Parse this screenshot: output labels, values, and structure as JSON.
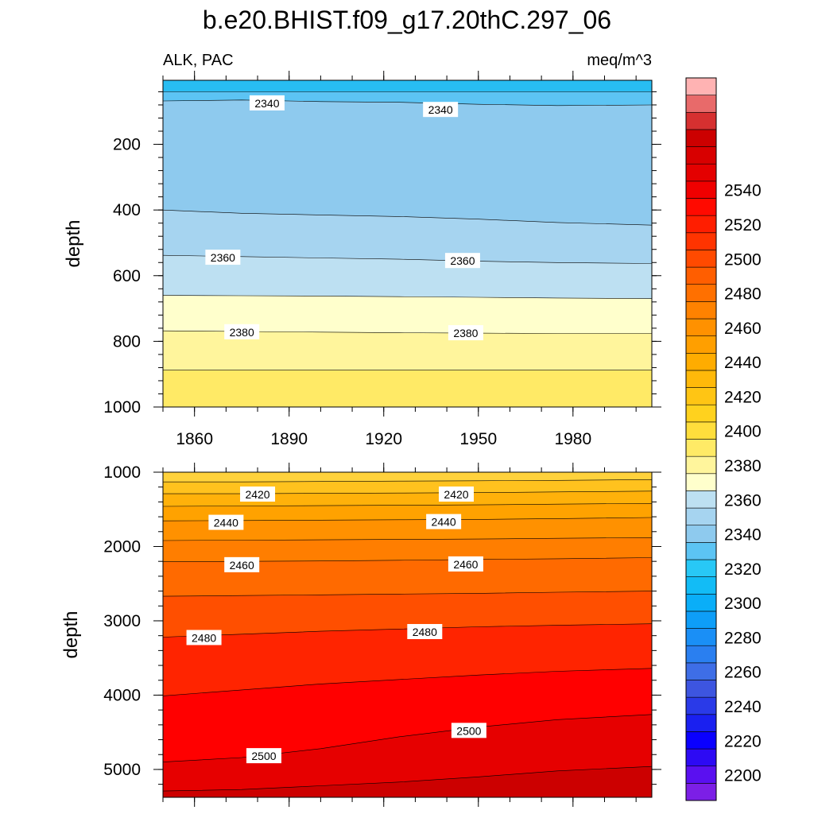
{
  "title": "b.e20.BHIST.f09_g17.20thC.297_06",
  "left_string": "ALK, PAC",
  "right_string": "meq/m^3",
  "colors": {
    "contour_line": "#000000",
    "background": "#ffffff"
  },
  "chart_data": [
    {
      "type": "heatmap",
      "panel": "upper",
      "xlabel": "",
      "ylabel": "depth",
      "xlim": [
        1850,
        2005
      ],
      "ylim": [
        5,
        1000
      ],
      "y_reversed": true,
      "x_ticks": [
        "1860",
        "1890",
        "1920",
        "1950",
        "1980"
      ],
      "y_ticks": [
        "200",
        "400",
        "600",
        "800",
        "1000"
      ],
      "fill_bands": [
        {
          "color": "#28bdf2",
          "boundary": [
            40,
            40,
            40,
            40,
            40,
            40,
            40
          ]
        },
        {
          "color": "#5cc4f4",
          "boundary": [
            68,
            65,
            70,
            72,
            78,
            82,
            80
          ]
        },
        {
          "color": "#8ecaee",
          "boundary": [
            400,
            410,
            415,
            420,
            428,
            438,
            446
          ]
        },
        {
          "color": "#a6d4f0",
          "boundary": [
            538,
            542,
            546,
            550,
            556,
            560,
            563
          ]
        },
        {
          "color": "#bde0f2",
          "boundary": [
            660,
            661,
            662,
            664,
            666,
            668,
            670
          ]
        },
        {
          "color": "#ffffcc",
          "boundary": [
            768,
            770,
            772,
            774,
            775,
            776,
            776
          ]
        },
        {
          "color": "#fff59c",
          "boundary": [
            888,
            888,
            888,
            888,
            888,
            888,
            888
          ]
        },
        {
          "color": "#ffea66",
          "boundary": [
            1000,
            1000,
            1000,
            1000,
            1000,
            1000,
            1000
          ]
        }
      ],
      "band_x": [
        1850,
        1875,
        1900,
        1925,
        1950,
        1975,
        2005
      ],
      "contour_labels": [
        {
          "text": "2340",
          "x": 1883,
          "y": 75
        },
        {
          "text": "2340",
          "x": 1938,
          "y": 95
        },
        {
          "text": "2360",
          "x": 1869,
          "y": 545
        },
        {
          "text": "2360",
          "x": 1945,
          "y": 555
        },
        {
          "text": "2380",
          "x": 1875,
          "y": 772
        },
        {
          "text": "2380",
          "x": 1946,
          "y": 775
        }
      ]
    },
    {
      "type": "heatmap",
      "panel": "lower",
      "xlabel": "",
      "ylabel": "depth",
      "xlim": [
        1850,
        2005
      ],
      "ylim": [
        1000,
        5375
      ],
      "y_reversed": true,
      "x_ticks": [
        "1860",
        "1890",
        "1920",
        "1950",
        "1980"
      ],
      "y_ticks": [
        "1000",
        "2000",
        "3000",
        "4000",
        "5000"
      ],
      "fill_bands": [
        {
          "color": "#ffd23c",
          "boundary": [
            1130,
            1130,
            1125,
            1120,
            1115,
            1110,
            1100
          ]
        },
        {
          "color": "#ffc21e",
          "boundary": [
            1290,
            1290,
            1285,
            1280,
            1275,
            1265,
            1255
          ]
        },
        {
          "color": "#ffb10a",
          "boundary": [
            1460,
            1455,
            1450,
            1445,
            1440,
            1430,
            1420
          ]
        },
        {
          "color": "#ffa200",
          "boundary": [
            1655,
            1650,
            1645,
            1640,
            1635,
            1625,
            1610
          ]
        },
        {
          "color": "#ff9100",
          "boundary": [
            1920,
            1915,
            1910,
            1905,
            1900,
            1890,
            1880
          ]
        },
        {
          "color": "#ff7e00",
          "boundary": [
            2205,
            2200,
            2195,
            2185,
            2175,
            2165,
            2150
          ]
        },
        {
          "color": "#ff6a00",
          "boundary": [
            2670,
            2660,
            2650,
            2640,
            2630,
            2615,
            2600
          ]
        },
        {
          "color": "#ff4f00",
          "boundary": [
            3220,
            3180,
            3140,
            3110,
            3080,
            3060,
            3040
          ]
        },
        {
          "color": "#ff2400",
          "boundary": [
            4010,
            3930,
            3850,
            3790,
            3730,
            3680,
            3640
          ]
        },
        {
          "color": "#ff0000",
          "boundary": [
            4900,
            4840,
            4720,
            4560,
            4430,
            4330,
            4260
          ]
        },
        {
          "color": "#e60000",
          "boundary": [
            5290,
            5270,
            5220,
            5170,
            5100,
            5020,
            4960
          ]
        },
        {
          "color": "#cc0000",
          "boundary": [
            5375,
            5375,
            5375,
            5375,
            5375,
            5375,
            5375
          ]
        }
      ],
      "band_x": [
        1850,
        1875,
        1900,
        1925,
        1950,
        1975,
        2005
      ],
      "contour_labels": [
        {
          "text": "2420",
          "x": 1880,
          "y": 1300
        },
        {
          "text": "2420",
          "x": 1943,
          "y": 1300
        },
        {
          "text": "2440",
          "x": 1870,
          "y": 1680
        },
        {
          "text": "2440",
          "x": 1939,
          "y": 1670
        },
        {
          "text": "2460",
          "x": 1875,
          "y": 2250
        },
        {
          "text": "2460",
          "x": 1946,
          "y": 2240
        },
        {
          "text": "2480",
          "x": 1863,
          "y": 3230
        },
        {
          "text": "2480",
          "x": 1933,
          "y": 3150
        },
        {
          "text": "2500",
          "x": 1882,
          "y": 4820
        },
        {
          "text": "2500",
          "x": 1947,
          "y": 4480
        }
      ]
    }
  ],
  "colorbar": {
    "labels": [
      "2200",
      "2220",
      "2240",
      "2260",
      "2280",
      "2300",
      "2320",
      "2340",
      "2360",
      "2380",
      "2400",
      "2420",
      "2440",
      "2460",
      "2480",
      "2500",
      "2520",
      "2540"
    ],
    "colors": [
      "#7c1fe6",
      "#5a10f0",
      "#2d0af4",
      "#0a00ff",
      "#1a20f0",
      "#2a3ae8",
      "#3d55e0",
      "#3e6ee6",
      "#2a7ff0",
      "#1a8ff6",
      "#0e9ef8",
      "#0aaef8",
      "#12bcf6",
      "#28c8f6",
      "#5cc4f4",
      "#8ecaee",
      "#a6d4f0",
      "#bde0f2",
      "#ffffcc",
      "#fff59c",
      "#ffea66",
      "#ffde3c",
      "#ffd21e",
      "#ffc514",
      "#ffb90a",
      "#ffac00",
      "#ff9f00",
      "#ff9100",
      "#ff8200",
      "#ff7000",
      "#ff5e00",
      "#ff4a00",
      "#ff3400",
      "#ff1e00",
      "#ff0a00",
      "#f00000",
      "#e40000",
      "#d80000",
      "#cc0000",
      "#d63030",
      "#e86a6a",
      "#ffb3b3"
    ]
  }
}
